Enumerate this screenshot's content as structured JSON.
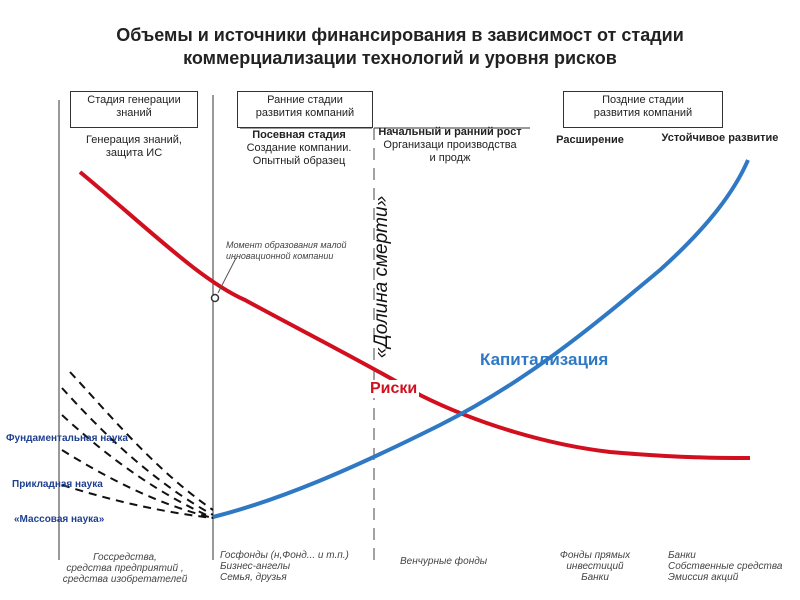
{
  "title": {
    "line1": "Объемы и источники финансирования в зависимост от стадии",
    "line2": "коммерциализации технологий и уровня рисков"
  },
  "stages": {
    "generation": {
      "line1": "Стадия генерации",
      "line2": "знаний"
    },
    "early": {
      "line1": "Ранние стадии",
      "line2": "развития компаний"
    },
    "late": {
      "line1": "Поздние стадии",
      "line2": "развития компаний"
    }
  },
  "substages": {
    "knowledge": {
      "title": "Генерация знаний,",
      "desc": "защита ИС"
    },
    "seed": {
      "title": "Посевная стадия",
      "desc1": "Создание компании.",
      "desc2": "Опытный образец"
    },
    "initial": {
      "title": "Начальный и ранний рост",
      "desc1": "Организаци производства",
      "desc2": "и продж"
    },
    "expansion": {
      "title": "Расширение"
    },
    "sustainable": {
      "title": "Устойчивое развитие"
    }
  },
  "moment_note": {
    "line1": "Момент образования малой",
    "line2": "инновационной компании"
  },
  "labels": {
    "death_valley": "«Долина смерти»",
    "capitalization": "Капитализация",
    "risks": "Риски"
  },
  "science": {
    "fundamental": "Фундаментальная наука",
    "applied": "Прикладная наука",
    "mass": "«Массовая наука»"
  },
  "funding": {
    "state": {
      "line1": "Госсредства,",
      "line2": "средства  предприятий ,",
      "line3": "средства изобретателей"
    },
    "angels": {
      "line1": "Госфонды (н,Фонд... и т.п.)",
      "line2": "Бизнес-ангелы",
      "line3": "Семья, друзья"
    },
    "venture": {
      "line1": "Венчурные фонды"
    },
    "direct": {
      "line1": "Фонды прямых",
      "line2": "инвестиций",
      "line3": "Банки"
    },
    "banks": {
      "line1": "Банки",
      "line2": "Собственные средства",
      "line3": "Эмиссия акций"
    }
  },
  "colors": {
    "risk": "#d10f1f",
    "capitalization": "#2e78c4",
    "science_text": "#1f3f8f",
    "axis": "#333333"
  }
}
